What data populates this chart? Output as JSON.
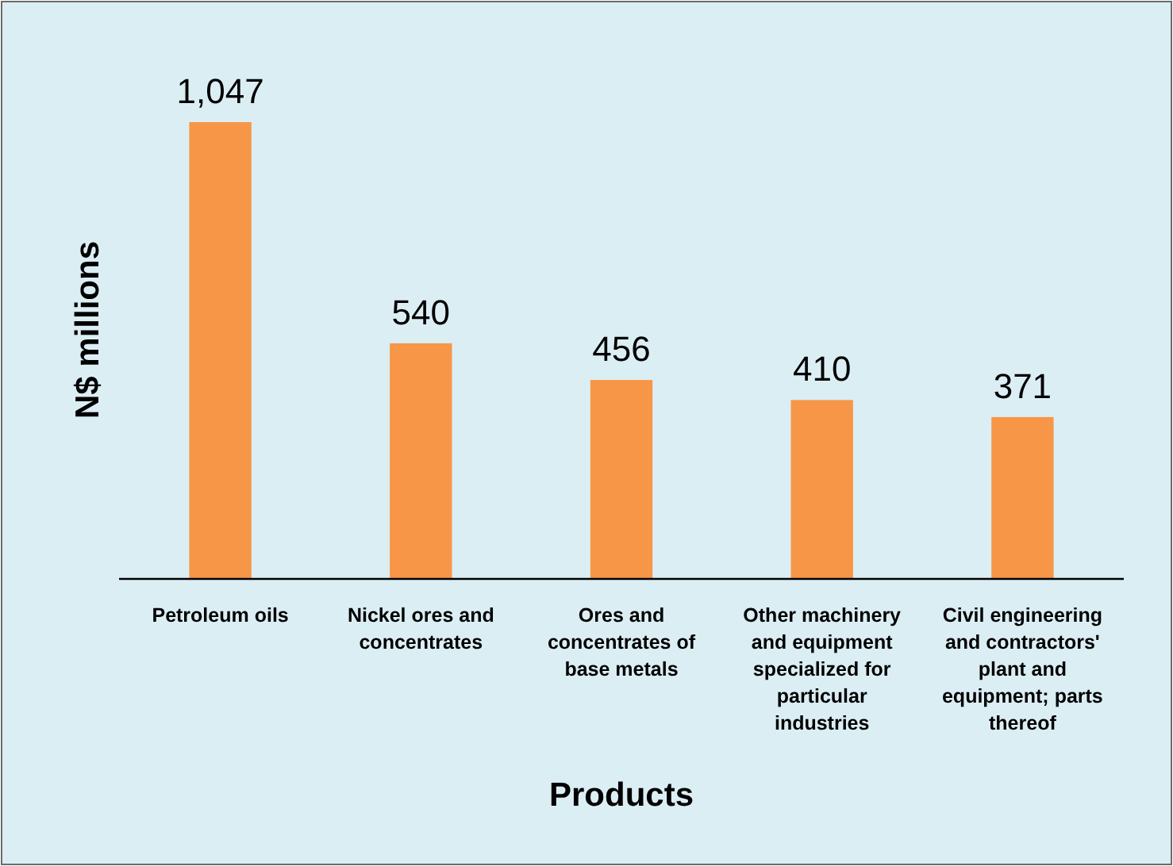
{
  "chart_data": {
    "type": "bar",
    "xlabel": "Products",
    "ylabel": "N$ millions",
    "categories": [
      "Petroleum oils",
      "Nickel ores and concentrates",
      "Ores and concentrates of base metals",
      "Other machinery and equipment specialized for particular industries",
      "Civil engineering and contractors' plant and equipment; parts thereof"
    ],
    "values": [
      1047,
      540,
      456,
      410,
      371
    ],
    "value_labels": [
      "1,047",
      "540",
      "456",
      "410",
      "371"
    ],
    "color": "#f79646"
  }
}
